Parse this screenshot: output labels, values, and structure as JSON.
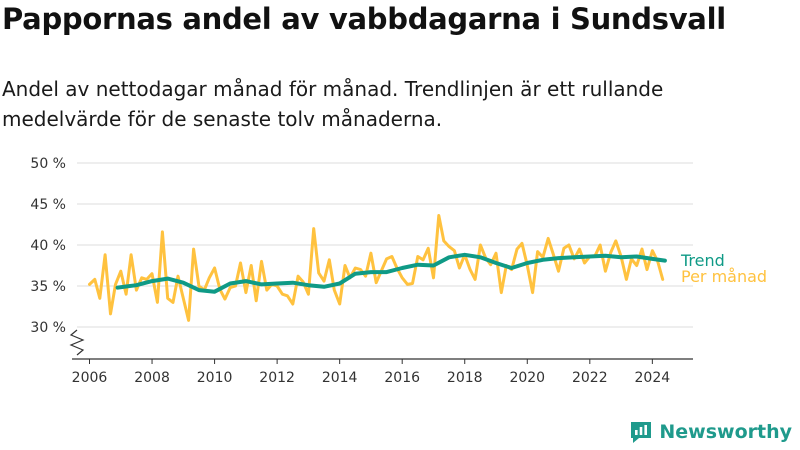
{
  "title": "Pappornas andel av vabbdagarna i Sundsvall",
  "subtitle": "Andel av nettodagar månad för månad. Trendlinjen är ett rullande medelvärde för de senaste tolv månaderna.",
  "brand": {
    "name": "Newsworthy",
    "color": "#1f9a8c"
  },
  "colors": {
    "monthly": "#ffc23f",
    "trend": "#0f9a86",
    "grid": "#dddddd",
    "axis": "#333333"
  },
  "icons": {
    "axis_break": "axis-break-icon",
    "logo": "newsworthy-logo-icon"
  },
  "chart_data": {
    "type": "line",
    "title": "Pappornas andel av vabbdagarna i Sundsvall",
    "xlabel": "",
    "ylabel": "",
    "xlim": [
      2005.6,
      2025.3
    ],
    "ylim": [
      30,
      50
    ],
    "y_ticks": [
      30,
      35,
      40,
      45,
      50
    ],
    "y_tick_labels": [
      "30 %",
      "35 %",
      "40 %",
      "45 %",
      "50 %"
    ],
    "x_ticks": [
      2006,
      2008,
      2010,
      2012,
      2014,
      2016,
      2018,
      2020,
      2022,
      2024
    ],
    "x_tick_labels": [
      "2006",
      "2008",
      "2010",
      "2012",
      "2014",
      "2016",
      "2018",
      "2020",
      "2022",
      "2024"
    ],
    "grid": "horizontal",
    "legend_position": "right",
    "axis_break": true,
    "series": [
      {
        "name": "Trend",
        "color": "#0f9a86",
        "x": [
          2006.9,
          2007.5,
          2008.0,
          2008.5,
          2009.0,
          2009.5,
          2010.0,
          2010.5,
          2011.0,
          2011.5,
          2012.0,
          2012.5,
          2013.0,
          2013.5,
          2014.0,
          2014.5,
          2015.0,
          2015.5,
          2016.0,
          2016.5,
          2017.0,
          2017.5,
          2018.0,
          2018.5,
          2019.0,
          2019.5,
          2020.0,
          2020.5,
          2021.0,
          2021.5,
          2022.0,
          2022.5,
          2023.0,
          2023.5,
          2024.0,
          2024.4
        ],
        "y": [
          34.8,
          35.1,
          35.6,
          35.9,
          35.4,
          34.5,
          34.3,
          35.3,
          35.6,
          35.2,
          35.3,
          35.4,
          35.1,
          34.9,
          35.3,
          36.5,
          36.7,
          36.7,
          37.2,
          37.6,
          37.5,
          38.5,
          38.8,
          38.5,
          37.8,
          37.2,
          37.8,
          38.2,
          38.4,
          38.5,
          38.6,
          38.7,
          38.5,
          38.6,
          38.3,
          38.1
        ]
      },
      {
        "name": "Per månad",
        "color": "#ffc23f",
        "x": [
          2006.0,
          2006.17,
          2006.33,
          2006.5,
          2006.67,
          2006.83,
          2007.0,
          2007.17,
          2007.33,
          2007.5,
          2007.67,
          2007.83,
          2008.0,
          2008.17,
          2008.33,
          2008.5,
          2008.67,
          2008.83,
          2009.0,
          2009.17,
          2009.33,
          2009.5,
          2009.67,
          2009.83,
          2010.0,
          2010.17,
          2010.33,
          2010.5,
          2010.67,
          2010.83,
          2011.0,
          2011.17,
          2011.33,
          2011.5,
          2011.67,
          2011.83,
          2012.0,
          2012.17,
          2012.33,
          2012.5,
          2012.67,
          2012.83,
          2013.0,
          2013.17,
          2013.33,
          2013.5,
          2013.67,
          2013.83,
          2014.0,
          2014.17,
          2014.33,
          2014.5,
          2014.67,
          2014.83,
          2015.0,
          2015.17,
          2015.33,
          2015.5,
          2015.67,
          2015.83,
          2016.0,
          2016.17,
          2016.33,
          2016.5,
          2016.67,
          2016.83,
          2017.0,
          2017.17,
          2017.33,
          2017.5,
          2017.67,
          2017.83,
          2018.0,
          2018.17,
          2018.33,
          2018.5,
          2018.67,
          2018.83,
          2019.0,
          2019.17,
          2019.33,
          2019.5,
          2019.67,
          2019.83,
          2020.0,
          2020.17,
          2020.33,
          2020.5,
          2020.67,
          2020.83,
          2021.0,
          2021.17,
          2021.33,
          2021.5,
          2021.67,
          2021.83,
          2022.0,
          2022.17,
          2022.33,
          2022.5,
          2022.67,
          2022.83,
          2023.0,
          2023.17,
          2023.33,
          2023.5,
          2023.67,
          2023.83,
          2024.0,
          2024.17,
          2024.33
        ],
        "y": [
          35.2,
          35.8,
          33.5,
          38.8,
          31.6,
          35.2,
          36.8,
          34.0,
          38.8,
          34.5,
          36.0,
          35.8,
          36.5,
          33.0,
          41.6,
          33.5,
          33.0,
          36.2,
          33.5,
          30.8,
          39.5,
          35.0,
          34.5,
          36.0,
          37.2,
          34.6,
          33.4,
          34.8,
          35.0,
          37.8,
          34.2,
          37.5,
          33.2,
          38.0,
          34.5,
          35.2,
          35.0,
          34.0,
          33.8,
          32.8,
          36.2,
          35.5,
          34.0,
          42.0,
          36.6,
          35.6,
          38.2,
          34.5,
          32.8,
          37.5,
          36.0,
          37.2,
          37.0,
          36.2,
          39.0,
          35.4,
          36.8,
          38.3,
          38.6,
          37.2,
          36.0,
          35.2,
          35.3,
          38.6,
          38.2,
          39.6,
          36.0,
          43.6,
          40.5,
          39.8,
          39.3,
          37.2,
          38.8,
          37.0,
          35.8,
          40.0,
          38.4,
          37.6,
          39.0,
          34.2,
          37.5,
          37.0,
          39.5,
          40.2,
          37.5,
          34.2,
          39.2,
          38.5,
          40.8,
          38.9,
          36.8,
          39.6,
          40.0,
          38.3,
          39.5,
          37.8,
          38.6,
          38.7,
          40.0,
          36.8,
          39.1,
          40.5,
          38.6,
          35.8,
          38.3,
          37.5,
          39.5,
          37.0,
          39.3,
          38.0,
          35.8
        ]
      }
    ]
  }
}
